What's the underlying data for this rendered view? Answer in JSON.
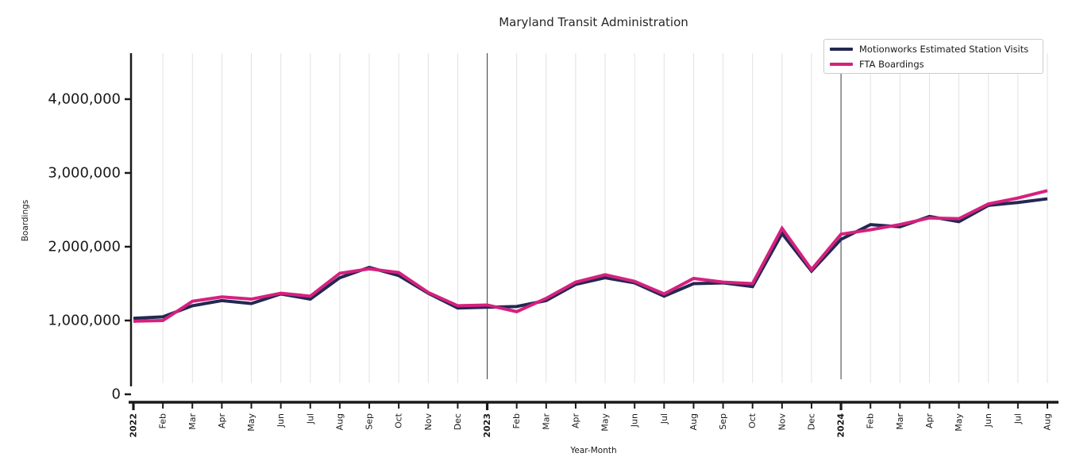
{
  "title": "Maryland Transit Administration",
  "chart_data": {
    "type": "line",
    "title": "Maryland Transit Administration",
    "xlabel": "Year-Month",
    "ylabel": "Boardings",
    "categories": [
      "2022",
      "Feb",
      "Mar",
      "Apr",
      "May",
      "Jun",
      "Jul",
      "Aug",
      "Sep",
      "Oct",
      "Nov",
      "Dec",
      "2023",
      "Feb",
      "Mar",
      "Apr",
      "May",
      "Jun",
      "Jul",
      "Aug",
      "Sep",
      "Oct",
      "Nov",
      "Dec",
      "2024",
      "Feb",
      "Mar",
      "Apr",
      "May",
      "Jun",
      "Jul",
      "Aug"
    ],
    "year_tick_labels": [
      "2022",
      "2023",
      "2024"
    ],
    "series": [
      {
        "name": "Motionworks Estimated Station Visits",
        "color": "#232852",
        "values": [
          1030000,
          1050000,
          1200000,
          1270000,
          1230000,
          1360000,
          1290000,
          1580000,
          1720000,
          1610000,
          1370000,
          1170000,
          1180000,
          1190000,
          1270000,
          1490000,
          1580000,
          1510000,
          1330000,
          1500000,
          1510000,
          1460000,
          2180000,
          1670000,
          2100000,
          2300000,
          2270000,
          2410000,
          2340000,
          2560000,
          2600000,
          2650000
        ]
      },
      {
        "name": "FTA Boardings",
        "color": "#d5217e",
        "values": [
          990000,
          1000000,
          1260000,
          1320000,
          1290000,
          1370000,
          1330000,
          1640000,
          1700000,
          1650000,
          1380000,
          1200000,
          1210000,
          1120000,
          1300000,
          1520000,
          1620000,
          1530000,
          1360000,
          1570000,
          1520000,
          1500000,
          2250000,
          1690000,
          2170000,
          2230000,
          2300000,
          2390000,
          2380000,
          2580000,
          2660000,
          2760000
        ]
      }
    ],
    "ytick_values": [
      0,
      1000000,
      2000000,
      3000000,
      4000000
    ],
    "ytick_labels": [
      "0",
      "1,000,000",
      "2,000,000",
      "3,000,000",
      "4,000,000"
    ],
    "ylim": [
      0,
      4650000
    ],
    "grid": "vertical-per-month",
    "year_separator_color": "#3c3c3c",
    "gridline_color": "#e2e2e2",
    "axis_color": "#1a1a1a",
    "legend_position": "upper-right"
  }
}
